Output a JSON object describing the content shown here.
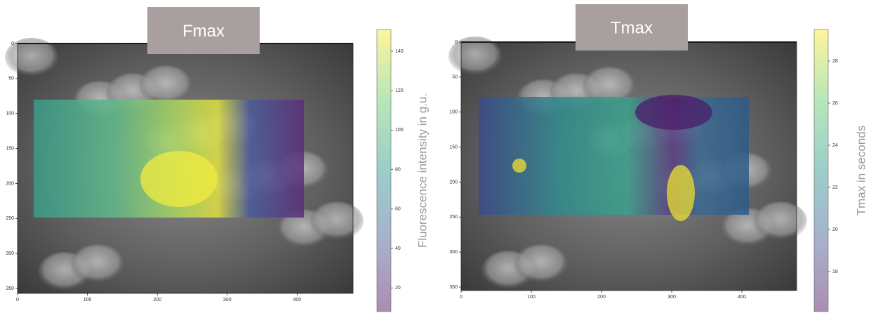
{
  "chart_data": [
    {
      "type": "image",
      "title": "Fmax",
      "xlim": [
        0,
        480
      ],
      "xticks": [
        0,
        100,
        200,
        300,
        400
      ],
      "ylim": [
        0,
        357
      ],
      "yticks": [
        0,
        50,
        100,
        150,
        200,
        250,
        300,
        350
      ],
      "colormap": "viridis",
      "colorbar": {
        "label": "Fluorescence intensity in g.u.",
        "lim": [
          8,
          151
        ],
        "ticks": [
          20,
          40,
          60,
          80,
          100,
          120,
          140
        ]
      }
    },
    {
      "type": "image",
      "title": "Tmax",
      "xlim": [
        0,
        478
      ],
      "xticks": [
        0,
        100,
        200,
        300,
        400
      ],
      "ylim": [
        0,
        355
      ],
      "yticks": [
        0,
        50,
        100,
        150,
        200,
        250,
        300,
        350
      ],
      "colormap": "viridis",
      "colorbar": {
        "label": "Tmax in seconds",
        "lim": [
          16.1,
          29.5
        ],
        "ticks": [
          18,
          20,
          22,
          24,
          26,
          28
        ]
      }
    }
  ]
}
